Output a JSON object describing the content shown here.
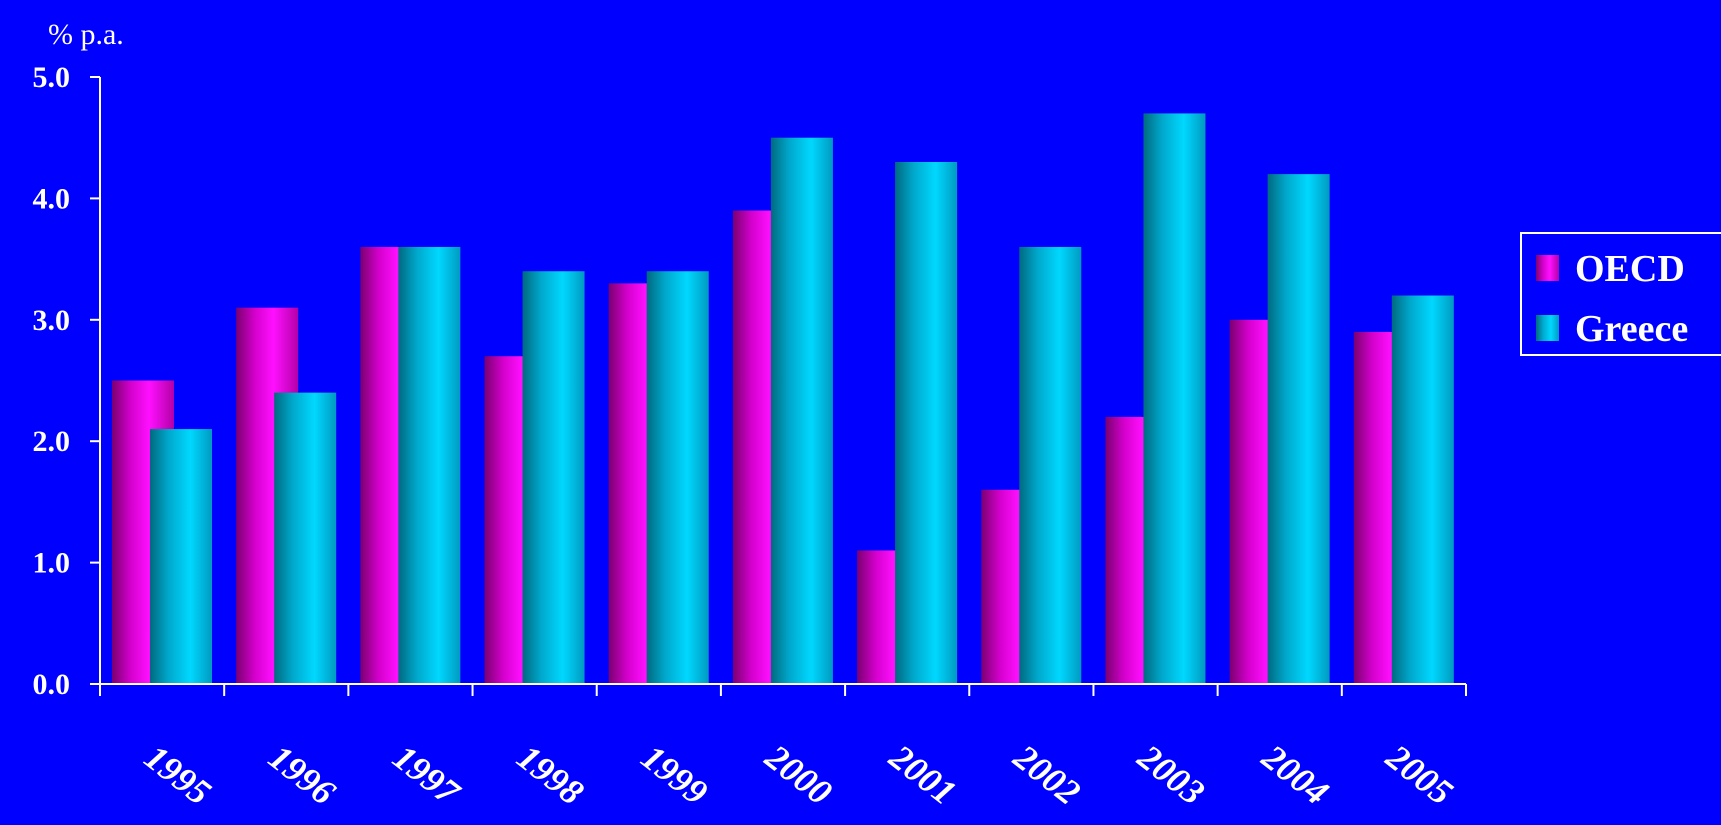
{
  "chart_data": {
    "type": "bar",
    "ylabel": "% p.a.",
    "ylim": [
      0,
      5
    ],
    "yticks": [
      "0.0",
      "1.0",
      "2.0",
      "3.0",
      "4.0",
      "5.0"
    ],
    "categories": [
      "1995",
      "1996",
      "1997",
      "1998",
      "1999",
      "2000",
      "2001",
      "2002",
      "2003",
      "2004",
      "2005"
    ],
    "series": [
      {
        "name": "OECD",
        "color": "#ff00ff",
        "values": [
          2.5,
          3.1,
          3.6,
          2.7,
          3.3,
          3.9,
          1.1,
          1.6,
          2.2,
          3.0,
          2.9
        ]
      },
      {
        "name": "Greece",
        "color": "#00ccff",
        "values": [
          2.1,
          2.4,
          3.6,
          3.4,
          3.4,
          4.5,
          4.3,
          3.6,
          4.7,
          4.2,
          3.2
        ]
      }
    ],
    "legend_position": "right",
    "background_color": "#0000ff",
    "axis_color": "#ffffff"
  }
}
